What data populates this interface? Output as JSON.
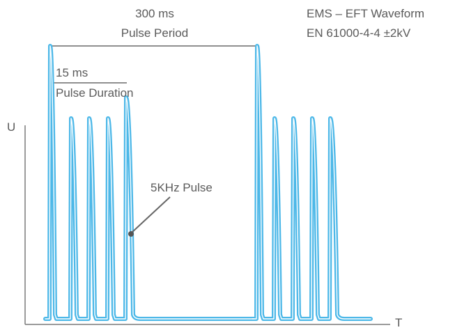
{
  "title": {
    "line1": "EMS – EFT Waveform",
    "line2": "EN 61000-4-4 ±2kV"
  },
  "period": {
    "value": "300 ms",
    "label": "Pulse Period"
  },
  "duration": {
    "value": "15 ms",
    "label": "Pulse Duration"
  },
  "pulse_label": "5KHz Pulse",
  "axes": {
    "y_label": "U",
    "x_label": "T"
  },
  "colors": {
    "pulse_glow": "#4db8e8",
    "pulse_core": "#ffffff",
    "axis": "#7a7a7a",
    "marker": "#555555",
    "text": "#5a5a5a"
  }
}
